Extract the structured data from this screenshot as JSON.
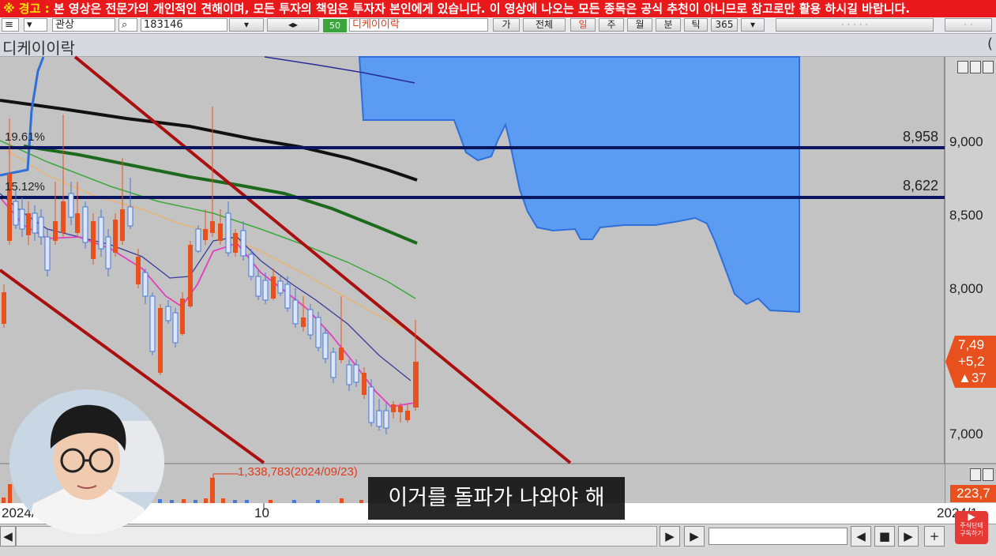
{
  "warning_banner": {
    "prefix": "※ 경고 :",
    "text": "본 영상은 전문가의 개인적인 견해이며, 모든 투자의 책임은 투자자 본인에게 있습니다. 이 영상에 나오는 모든 종목은 공식 추천이 아니므로 참고로만 활용 하시길 바랍니다."
  },
  "toolbar": {
    "account": "관상",
    "code": "183146",
    "badge": "50",
    "stock_name": "디케이이락",
    "buttons": [
      "가",
      "전체",
      "일",
      "주",
      "월",
      "분",
      "틱",
      "365"
    ]
  },
  "chart_title": "디케이이락",
  "title_paren": "(",
  "price_axis": {
    "ticks": [
      "9,000",
      "8,500",
      "8,000",
      "7,000"
    ],
    "lines": [
      {
        "value": "8,958",
        "pct": "19.61%"
      },
      {
        "value": "8,622",
        "pct": "15.12%"
      }
    ]
  },
  "current_price": {
    "price": "7,49",
    "change": "+5,2",
    "change_pct": "▲37"
  },
  "volume": {
    "peak_label": "1,338,783(2024/09/23)",
    "current": "223,7"
  },
  "date_axis": {
    "left": "2024/",
    "mid": "10",
    "right": "2024/1"
  },
  "subtitle": "이거를 돌파가 나와야 해",
  "subscribe_badge": {
    "line1": "주식단테",
    "line2": "구독하기"
  },
  "colors": {
    "warning_bg": "#e8181b",
    "cloud": "#5b9bf2",
    "up": "#e8501e",
    "down": "#4a7ad8",
    "resistance": "#0a1560",
    "channel": "#aa1010"
  }
}
